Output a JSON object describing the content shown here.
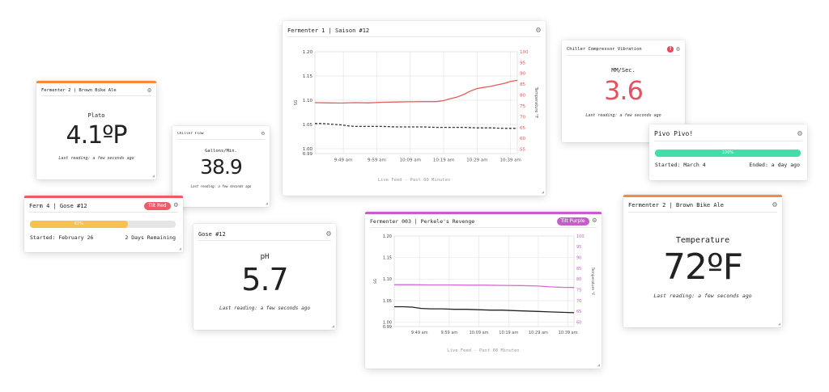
{
  "cards": {
    "plato": {
      "title": "Fermenter 2 | Brown Bike Ale",
      "unit": "Plato",
      "value": "4.1ºP",
      "last": "Last reading: a few seconds ago",
      "accent": "#f28c3c"
    },
    "chiller_flow": {
      "title": "Chiller Flow",
      "unit": "Gallons/Min.",
      "value": "38.9",
      "last": "Last reading: a few seconds ago"
    },
    "ferm4": {
      "title": "Ferm 4 | Gose #12",
      "badge": "Tilt Red",
      "badge_color": "#ee5a67",
      "accent": "#ee5a67",
      "progress": 0.67,
      "progress_label": "67%",
      "progress_color": "#f6c24e",
      "started": "Started: February 26",
      "remaining": "2 Days Remaining"
    },
    "gose": {
      "title": "Gose #12",
      "unit": "pH",
      "value": "5.7",
      "last": "Last reading: a few seconds ago"
    },
    "fermenter1": {
      "title": "Fermenter 1 | Saison #12",
      "footer": "Live Feed - Past 60 Minutes"
    },
    "fermenter003": {
      "title": "Fermenter 003 | Perkele's Revenge",
      "badge": "Tilt Purple",
      "badge_color": "#c55fc8",
      "accent": "#c55fc8",
      "footer": "Live Feed - Past 60 Minutes"
    },
    "vibration": {
      "title": "Chiller Compressor Vibration",
      "alert": "!",
      "alert_color": "#e8445a",
      "unit": "MM/Sec.",
      "value": "3.6",
      "value_color": "#e8515f",
      "last": "Last reading: a few seconds ago"
    },
    "pivo": {
      "title": "Pivo Pivo!",
      "progress": 1.0,
      "progress_label": "100%",
      "progress_color": "#3fdfaa",
      "started": "Started: March 4",
      "ended": "Ended: a day ago"
    },
    "temperature": {
      "title": "Fermenter 2 | Brown Bike Ale",
      "unit": "Temperature",
      "value": "72ºF",
      "last": "Last reading: a few seconds ago",
      "accent": "#f28c3c"
    }
  },
  "gear_icon": "gear-icon",
  "chart_data": [
    {
      "type": "line",
      "x_ticks": [
        "9:49 am",
        "9:59 am",
        "10:09 am",
        "10:19 am",
        "10:29 am",
        "10:39 am"
      ],
      "xlim": [
        0,
        60
      ],
      "ylabel": "SG",
      "ylabel_right": "Temperature °F",
      "y_ticks": [
        "1.20",
        "1.15",
        "1.10",
        "1.05",
        "1.00",
        "0.99"
      ],
      "y_tick_values": [
        1.2,
        1.15,
        1.1,
        1.05,
        1.0,
        0.99
      ],
      "ylim": [
        0.99,
        1.2
      ],
      "y2_ticks": [
        "100",
        "95",
        "90",
        "85",
        "80",
        "75",
        "70",
        "65",
        "60",
        "55"
      ],
      "y2_tick_values": [
        100,
        95,
        90,
        85,
        80,
        75,
        70,
        65,
        60,
        55
      ],
      "y2lim": [
        53,
        100
      ],
      "series": [
        {
          "color": "#e35d5d",
          "dash": false,
          "axis": "right",
          "x": [
            0,
            4,
            8,
            12,
            16,
            20,
            24,
            28,
            32,
            36,
            38,
            40,
            42,
            44,
            46,
            48,
            50,
            52,
            54,
            56,
            58,
            60
          ],
          "y": [
            76.5,
            76.4,
            76.3,
            76.5,
            76.4,
            76.7,
            76.8,
            76.9,
            77,
            77,
            77.4,
            78.3,
            79,
            80.2,
            81.8,
            83,
            83.5,
            84,
            84.7,
            85.3,
            86.3,
            86.8
          ]
        },
        {
          "color": "#333333",
          "dash": true,
          "axis": "left",
          "x": [
            0,
            2,
            4,
            6,
            8,
            10,
            12,
            16,
            20,
            24,
            28,
            32,
            36,
            40,
            44,
            48,
            52,
            56,
            60
          ],
          "y": [
            1.052,
            1.052,
            1.051,
            1.05,
            1.049,
            1.047,
            1.046,
            1.046,
            1.046,
            1.045,
            1.045,
            1.045,
            1.044,
            1.044,
            1.044,
            1.043,
            1.043,
            1.042,
            1.042
          ]
        }
      ]
    },
    {
      "type": "line",
      "x_ticks": [
        "9:49 am",
        "9:59 am",
        "10:09 am",
        "10:19 am",
        "10:29 am",
        "10:39 am"
      ],
      "xlim": [
        0,
        60
      ],
      "ylabel": "SG",
      "ylabel_right": "Temperature °F",
      "y_ticks": [
        "1.20",
        "1.15",
        "1.10",
        "1.05",
        "1.00",
        "0.99"
      ],
      "y_tick_values": [
        1.2,
        1.15,
        1.1,
        1.05,
        1.0,
        0.99
      ],
      "ylim": [
        0.99,
        1.2
      ],
      "y2_ticks": [
        "100",
        "95",
        "90",
        "85",
        "80",
        "75",
        "70",
        "65",
        "60"
      ],
      "y2_tick_values": [
        100,
        95,
        90,
        85,
        80,
        75,
        70,
        65,
        60
      ],
      "y2lim": [
        58,
        100
      ],
      "series": [
        {
          "color": "#d56bd6",
          "dash": false,
          "axis": "right",
          "x": [
            0,
            6,
            12,
            18,
            24,
            30,
            36,
            42,
            48,
            52,
            56,
            60
          ],
          "y": [
            77.4,
            77.4,
            77.3,
            77.3,
            77.2,
            77.2,
            77.1,
            77,
            76.8,
            76.4,
            76.2,
            76.1
          ]
        },
        {
          "color": "#222222",
          "dash": false,
          "axis": "left",
          "x": [
            0,
            3,
            6,
            9,
            12,
            16,
            20,
            24,
            28,
            32,
            36,
            40,
            44,
            48,
            52,
            56,
            60
          ],
          "y": [
            1.036,
            1.036,
            1.035,
            1.032,
            1.031,
            1.031,
            1.03,
            1.03,
            1.029,
            1.028,
            1.028,
            1.027,
            1.026,
            1.025,
            1.024,
            1.023,
            1.022
          ]
        }
      ]
    }
  ]
}
